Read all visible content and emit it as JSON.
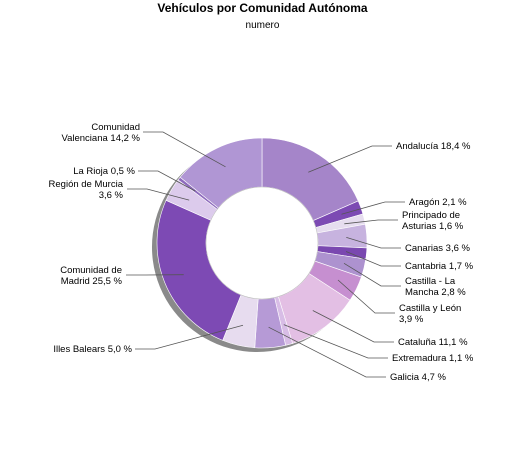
{
  "chart_data": {
    "type": "pie",
    "title": "Vehículos por Comunidad Autónoma",
    "subtitle": "numero",
    "slices": [
      {
        "name": "Andalucía",
        "value": 18.4,
        "label": [
          "Andalucía 18,4 %"
        ],
        "color": "#a585c9"
      },
      {
        "name": "Aragón",
        "value": 2.1,
        "label": [
          "Aragón 2,1 %"
        ],
        "color": "#7c4ab3"
      },
      {
        "name": "Principado de Asturias",
        "value": 1.6,
        "label": [
          "Principado de",
          "Asturias 1,6 %"
        ],
        "color": "#e6ddef"
      },
      {
        "name": "Canarias",
        "value": 3.6,
        "label": [
          "Canarias 3,6 %"
        ],
        "color": "#c7b3df"
      },
      {
        "name": "Cantabria",
        "value": 1.7,
        "label": [
          "Cantabria 1,7 %"
        ],
        "color": "#7a48b0"
      },
      {
        "name": "Castilla - La Mancha",
        "value": 2.8,
        "label": [
          "Castilla - La",
          "Mancha 2,8 %"
        ],
        "color": "#ad92cf"
      },
      {
        "name": "Castilla y León",
        "value": 3.9,
        "label": [
          "Castilla y León",
          "3,9 %"
        ],
        "color": "#c68fd0"
      },
      {
        "name": "Cataluña",
        "value": 11.1,
        "label": [
          "Cataluña 11,1 %"
        ],
        "color": "#e3bfe4"
      },
      {
        "name": "Extremadura",
        "value": 1.1,
        "label": [
          "Extremadura 1,1 %"
        ],
        "color": "#d8bde6"
      },
      {
        "name": "Galicia",
        "value": 4.7,
        "label": [
          "Galicia 4,7 %"
        ],
        "color": "#b69ad6"
      },
      {
        "name": "Illes Balears",
        "value": 5.0,
        "label": [
          "Illes Balears 5,0 %"
        ],
        "color": "#e7dcef"
      },
      {
        "name": "Comunidad de Madrid",
        "value": 25.5,
        "label": [
          "Comunidad de",
          "Madrid 25,5 %"
        ],
        "color": "#7d4ab4"
      },
      {
        "name": "Región de Murcia",
        "value": 3.6,
        "label": [
          "Región de Murcia",
          "3,6 %"
        ],
        "color": "#dccbec"
      },
      {
        "name": "La Rioja",
        "value": 0.5,
        "label": [
          "La Rioja 0,5 %"
        ],
        "color": "#8e6bbd"
      },
      {
        "name": "Comunidad Valenciana",
        "value": 14.2,
        "label": [
          "Comunidad",
          "Valenciana 14,2 %"
        ],
        "color": "#b096d4"
      }
    ]
  }
}
